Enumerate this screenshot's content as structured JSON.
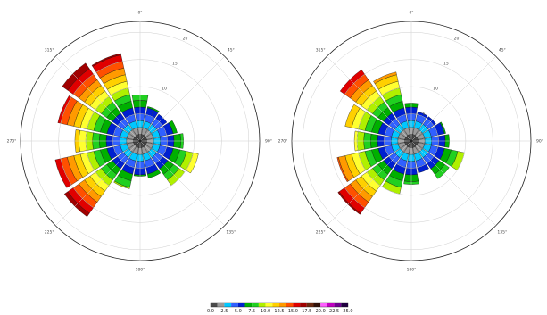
{
  "chart_data": [
    {
      "type": "polar-bar",
      "title": "",
      "angle_ticks": [
        "0°",
        "45°",
        "90°",
        "135°",
        "180°",
        "225°",
        "270°",
        "315°"
      ],
      "radial_ticks": [
        "5",
        "10",
        "15",
        "20"
      ],
      "radial_tick_values": [
        5,
        10,
        15,
        20
      ],
      "rlim": [
        0,
        22
      ],
      "wedges": [
        {
          "dir": 0,
          "rmax": 8.5
        },
        {
          "dir": 22.5,
          "rmax": 6.5
        },
        {
          "dir": 45,
          "rmax": 6.0
        },
        {
          "dir": 67.5,
          "rmax": 7.0
        },
        {
          "dir": 90,
          "rmax": 8.0
        },
        {
          "dir": 112.5,
          "rmax": 11.0
        },
        {
          "dir": 135,
          "rmax": 10.0
        },
        {
          "dir": 157.5,
          "rmax": 7.0
        },
        {
          "dir": 180,
          "rmax": 6.5
        },
        {
          "dir": 202.5,
          "rmax": 9.0
        },
        {
          "dir": 225,
          "rmax": 17.0
        },
        {
          "dir": 247.5,
          "rmax": 16.0
        },
        {
          "dir": 270,
          "rmax": 12.0
        },
        {
          "dir": 292.5,
          "rmax": 15.5
        },
        {
          "dir": 315,
          "rmax": 17.5
        },
        {
          "dir": 337.5,
          "rmax": 16.5
        }
      ]
    },
    {
      "type": "polar-bar",
      "title": "",
      "angle_ticks": [
        "0°",
        "45°",
        "90°",
        "135°",
        "180°",
        "225°",
        "270°",
        "315°"
      ],
      "radial_ticks": [
        "5",
        "10",
        "15",
        "20"
      ],
      "radial_tick_values": [
        5,
        10,
        15,
        20
      ],
      "rlim": [
        0,
        22
      ],
      "wedges": [
        {
          "dir": 0,
          "rmax": 7.0
        },
        {
          "dir": 22.5,
          "rmax": 5.5
        },
        {
          "dir": 45,
          "rmax": 5.5
        },
        {
          "dir": 67.5,
          "rmax": 6.5
        },
        {
          "dir": 90,
          "rmax": 7.0
        },
        {
          "dir": 112.5,
          "rmax": 10.0
        },
        {
          "dir": 135,
          "rmax": 8.5
        },
        {
          "dir": 157.5,
          "rmax": 6.0
        },
        {
          "dir": 180,
          "rmax": 8.0
        },
        {
          "dir": 202.5,
          "rmax": 10.0
        },
        {
          "dir": 225,
          "rmax": 16.5
        },
        {
          "dir": 247.5,
          "rmax": 14.0
        },
        {
          "dir": 270,
          "rmax": 10.5
        },
        {
          "dir": 292.5,
          "rmax": 12.5
        },
        {
          "dir": 315,
          "rmax": 16.0
        },
        {
          "dir": 337.5,
          "rmax": 13.0
        }
      ]
    }
  ],
  "colorbar": {
    "tick_labels": [
      "0.0",
      "2.5",
      "5.0",
      "7.5",
      "10.0",
      "12.5",
      "15.0",
      "17.5",
      "20.0",
      "22.5",
      "25.0"
    ],
    "range": [
      0,
      25
    ],
    "bins": [
      {
        "from": 0.0,
        "to": 1.25,
        "color": "#4a4a4a"
      },
      {
        "from": 1.25,
        "to": 2.5,
        "color": "#9a9a9a"
      },
      {
        "from": 2.5,
        "to": 3.75,
        "color": "#00c8ff"
      },
      {
        "from": 3.75,
        "to": 5.0,
        "color": "#3060ff"
      },
      {
        "from": 5.0,
        "to": 6.25,
        "color": "#0020d0"
      },
      {
        "from": 6.25,
        "to": 7.5,
        "color": "#00b000"
      },
      {
        "from": 7.5,
        "to": 8.75,
        "color": "#20d020"
      },
      {
        "from": 8.75,
        "to": 10.0,
        "color": "#b0f000"
      },
      {
        "from": 10.0,
        "to": 11.25,
        "color": "#ffff30"
      },
      {
        "from": 11.25,
        "to": 12.5,
        "color": "#ffd000"
      },
      {
        "from": 12.5,
        "to": 13.75,
        "color": "#ff9a00"
      },
      {
        "from": 13.75,
        "to": 15.0,
        "color": "#ff5000"
      },
      {
        "from": 15.0,
        "to": 16.25,
        "color": "#e00000"
      },
      {
        "from": 16.25,
        "to": 17.5,
        "color": "#a00000"
      },
      {
        "from": 17.5,
        "to": 18.75,
        "color": "#6a2a10"
      },
      {
        "from": 18.75,
        "to": 20.0,
        "color": "#301008"
      },
      {
        "from": 20.0,
        "to": 21.25,
        "color": "#ff60ff"
      },
      {
        "from": 21.25,
        "to": 22.5,
        "color": "#c000c0"
      },
      {
        "from": 22.5,
        "to": 23.75,
        "color": "#700090"
      },
      {
        "from": 23.75,
        "to": 25.0,
        "color": "#200040"
      }
    ]
  }
}
